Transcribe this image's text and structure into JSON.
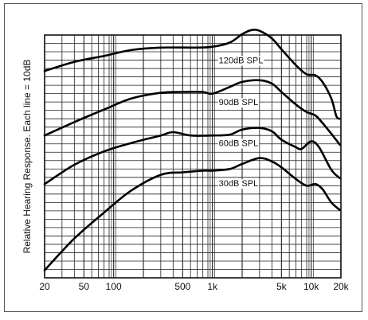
{
  "chart_data": {
    "type": "line",
    "title": "",
    "xlabel": "",
    "ylabel": "Relative Hearing Response. Each line = 10dB",
    "x_scale": "log",
    "xlim": [
      20,
      20000
    ],
    "ylim": [
      0,
      29
    ],
    "grid": true,
    "x_ticks": [
      {
        "value": 20,
        "label": "20"
      },
      {
        "value": 50,
        "label": "50"
      },
      {
        "value": 100,
        "label": "100"
      },
      {
        "value": 500,
        "label": "500"
      },
      {
        "value": 1000,
        "label": "1k"
      },
      {
        "value": 5000,
        "label": "5k"
      },
      {
        "value": 10000,
        "label": "10k"
      },
      {
        "value": 20000,
        "label": "20k"
      }
    ],
    "series": [
      {
        "name": "120dB SPL",
        "points": [
          [
            20,
            24.7
          ],
          [
            40,
            25.8
          ],
          [
            80,
            26.5
          ],
          [
            150,
            27.2
          ],
          [
            300,
            27.5
          ],
          [
            700,
            27.5
          ],
          [
            1000,
            27.6
          ],
          [
            1500,
            28.1
          ],
          [
            2000,
            29.1
          ],
          [
            2500,
            29.6
          ],
          [
            3000,
            29.5
          ],
          [
            4000,
            28.6
          ],
          [
            5000,
            27.3
          ],
          [
            7000,
            25.4
          ],
          [
            9000,
            24.3
          ],
          [
            11000,
            24.2
          ],
          [
            13000,
            23.4
          ],
          [
            16000,
            21.4
          ],
          [
            18000,
            19.3
          ],
          [
            19500,
            19.0
          ]
        ]
      },
      {
        "name": "90dB SPL",
        "points": [
          [
            20,
            17.0
          ],
          [
            40,
            18.6
          ],
          [
            80,
            20.1
          ],
          [
            150,
            21.4
          ],
          [
            300,
            22.1
          ],
          [
            500,
            22.2
          ],
          [
            800,
            22.2
          ],
          [
            1000,
            22.0
          ],
          [
            1500,
            22.8
          ],
          [
            2000,
            23.4
          ],
          [
            3000,
            23.6
          ],
          [
            4000,
            23.2
          ],
          [
            5000,
            22.2
          ],
          [
            7000,
            20.7
          ],
          [
            9000,
            19.8
          ],
          [
            11000,
            19.4
          ],
          [
            13000,
            18.5
          ],
          [
            16000,
            17.2
          ],
          [
            19500,
            15.9
          ]
        ]
      },
      {
        "name": "60dB SPL",
        "points": [
          [
            20,
            11.2
          ],
          [
            40,
            13.5
          ],
          [
            80,
            15.1
          ],
          [
            150,
            16.1
          ],
          [
            300,
            17.0
          ],
          [
            400,
            17.4
          ],
          [
            600,
            17.0
          ],
          [
            1000,
            17.0
          ],
          [
            1500,
            17.1
          ],
          [
            2000,
            17.7
          ],
          [
            3000,
            17.9
          ],
          [
            4000,
            17.5
          ],
          [
            5000,
            16.5
          ],
          [
            7000,
            15.6
          ],
          [
            8000,
            15.4
          ],
          [
            10000,
            16.3
          ],
          [
            12000,
            15.6
          ],
          [
            16000,
            12.9
          ],
          [
            19500,
            11.9
          ]
        ]
      },
      {
        "name": "30dB SPL",
        "points": [
          [
            20,
            0.9
          ],
          [
            40,
            4.7
          ],
          [
            80,
            7.8
          ],
          [
            150,
            10.4
          ],
          [
            300,
            12.3
          ],
          [
            500,
            12.6
          ],
          [
            800,
            12.8
          ],
          [
            1000,
            12.8
          ],
          [
            1500,
            13.0
          ],
          [
            2000,
            13.6
          ],
          [
            3000,
            14.3
          ],
          [
            4000,
            13.9
          ],
          [
            5000,
            13.2
          ],
          [
            7000,
            11.8
          ],
          [
            9000,
            11.0
          ],
          [
            11000,
            11.2
          ],
          [
            13000,
            10.6
          ],
          [
            16000,
            9.0
          ],
          [
            19500,
            8.1
          ]
        ]
      }
    ],
    "annotations": [
      {
        "text": "120dB SPL",
        "x": 1000,
        "y": 26.0
      },
      {
        "text": "90dB SPL",
        "x": 1000,
        "y": 21.0
      },
      {
        "text": "60dB SPL",
        "x": 1000,
        "y": 16.1
      },
      {
        "text": "30dB SPL",
        "x": 1000,
        "y": 11.3
      }
    ]
  }
}
